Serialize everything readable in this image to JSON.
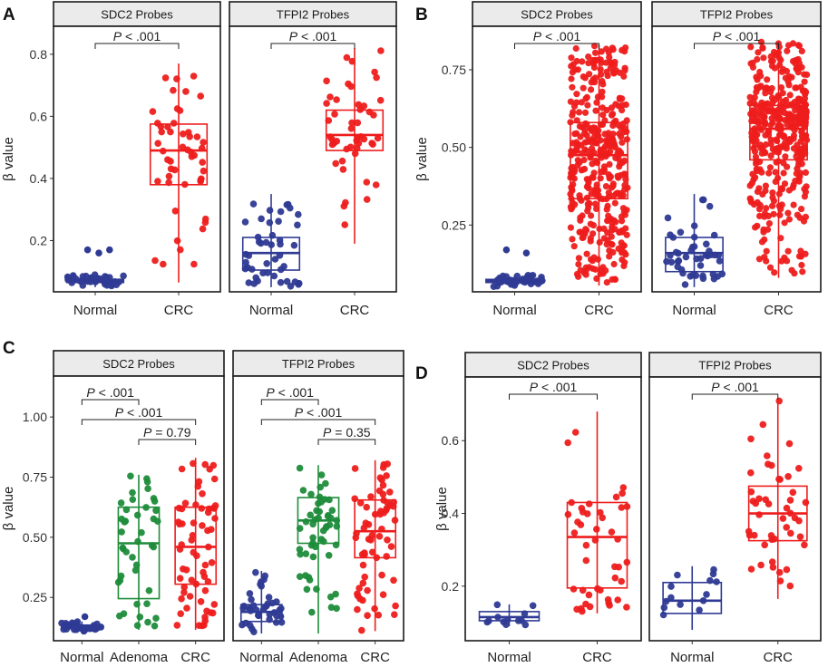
{
  "figure": {
    "colors": {
      "normal": "#2e3a93",
      "crc": "#ee1c1c",
      "adenoma": "#1e8c3a",
      "strip": "#ebebeb",
      "border": "#1a1a1a"
    }
  },
  "chart_data": [
    {
      "panel": "A",
      "type": "box",
      "ylabel": "β value",
      "yticks": [
        0.2,
        0.4,
        0.6,
        0.8
      ],
      "ylim": [
        0.035,
        0.89
      ],
      "yfmt": 1,
      "facets": [
        {
          "title": "SDC2 Probes",
          "groups": [
            {
              "name": "Normal",
              "color": "normal",
              "n": 40,
              "box": {
                "min": 0.05,
                "q1": 0.065,
                "median": 0.07,
                "q3": 0.075,
                "max": 0.09
              },
              "outliers": [
                0.16,
                0.17,
                0.17
              ]
            },
            {
              "name": "CRC",
              "color": "crc",
              "n": 50,
              "box": {
                "min": 0.065,
                "q1": 0.38,
                "median": 0.49,
                "q3": 0.575,
                "max": 0.77
              },
              "outliers": []
            }
          ],
          "comparisons": [
            {
              "g1": 0,
              "g2": 1,
              "label_prefix": "P",
              "label_suffix": " < .001",
              "level": 0
            }
          ]
        },
        {
          "title": "TFPI2 Probes",
          "groups": [
            {
              "name": "Normal",
              "color": "normal",
              "n": 45,
              "box": {
                "min": 0.05,
                "q1": 0.105,
                "median": 0.16,
                "q3": 0.21,
                "max": 0.35
              },
              "outliers": []
            },
            {
              "name": "CRC",
              "color": "crc",
              "n": 48,
              "box": {
                "min": 0.19,
                "q1": 0.49,
                "median": 0.54,
                "q3": 0.62,
                "max": 0.82
              },
              "outliers": []
            }
          ],
          "comparisons": [
            {
              "g1": 0,
              "g2": 1,
              "label_prefix": "P",
              "label_suffix": " < .001",
              "level": 0
            }
          ]
        }
      ]
    },
    {
      "panel": "B",
      "type": "box",
      "ylabel": "β value",
      "yticks": [
        0.25,
        0.5,
        0.75
      ],
      "ylim": [
        0.035,
        0.89
      ],
      "yfmt": 2,
      "facets": [
        {
          "title": "SDC2 Probes",
          "groups": [
            {
              "name": "Normal",
              "color": "normal",
              "n": 40,
              "box": {
                "min": 0.05,
                "q1": 0.065,
                "median": 0.07,
                "q3": 0.075,
                "max": 0.09
              },
              "outliers": [
                0.16,
                0.17
              ]
            },
            {
              "name": "CRC",
              "color": "crc",
              "n": 390,
              "box": {
                "min": 0.055,
                "q1": 0.335,
                "median": 0.475,
                "q3": 0.58,
                "max": 0.83
              },
              "outliers": []
            }
          ],
          "comparisons": [
            {
              "g1": 0,
              "g2": 1,
              "label_prefix": "P",
              "label_suffix": " < .001",
              "level": 0
            }
          ]
        },
        {
          "title": "TFPI2 Probes",
          "groups": [
            {
              "name": "Normal",
              "color": "normal",
              "n": 45,
              "box": {
                "min": 0.05,
                "q1": 0.1,
                "median": 0.16,
                "q3": 0.21,
                "max": 0.35
              },
              "outliers": []
            },
            {
              "name": "CRC",
              "color": "crc",
              "n": 390,
              "box": {
                "min": 0.08,
                "q1": 0.46,
                "median": 0.56,
                "q3": 0.635,
                "max": 0.84
              },
              "outliers": []
            }
          ],
          "comparisons": [
            {
              "g1": 0,
              "g2": 1,
              "label_prefix": "P",
              "label_suffix": " < .001",
              "level": 0
            }
          ]
        }
      ]
    },
    {
      "panel": "C",
      "type": "box",
      "ylabel": "β value",
      "yticks": [
        0.25,
        0.5,
        0.75,
        1.0
      ],
      "ylim": [
        0.07,
        1.17
      ],
      "yfmt": 2,
      "facets": [
        {
          "title": "SDC2 Probes",
          "groups": [
            {
              "name": "Normal",
              "color": "normal",
              "n": 30,
              "box": {
                "min": 0.115,
                "q1": 0.12,
                "median": 0.125,
                "q3": 0.135,
                "max": 0.15
              },
              "outliers": [
                0.11,
                0.17
              ]
            },
            {
              "name": "Adenoma",
              "color": "adenoma",
              "n": 42,
              "box": {
                "min": 0.115,
                "q1": 0.245,
                "median": 0.475,
                "q3": 0.625,
                "max": 0.76
              },
              "outliers": []
            },
            {
              "name": "CRC",
              "color": "crc",
              "n": 62,
              "box": {
                "min": 0.115,
                "q1": 0.305,
                "median": 0.46,
                "q3": 0.625,
                "max": 0.83
              },
              "outliers": []
            }
          ],
          "comparisons": [
            {
              "g1": 0,
              "g2": 1,
              "label_prefix": "P",
              "label_suffix": " < .001",
              "level": 0
            },
            {
              "g1": 0,
              "g2": 2,
              "label_prefix": "P",
              "label_suffix": " < .001",
              "level": 1
            },
            {
              "g1": 1,
              "g2": 2,
              "label_prefix": "P",
              "label_suffix": " = 0.79",
              "level": 2
            }
          ]
        },
        {
          "title": "TFPI2 Probes",
          "groups": [
            {
              "name": "Normal",
              "color": "normal",
              "n": 38,
              "box": {
                "min": 0.1,
                "q1": 0.15,
                "median": 0.19,
                "q3": 0.22,
                "max": 0.36
              },
              "outliers": []
            },
            {
              "name": "Adenoma",
              "color": "adenoma",
              "n": 52,
              "box": {
                "min": 0.1,
                "q1": 0.475,
                "median": 0.57,
                "q3": 0.665,
                "max": 0.8
              },
              "outliers": []
            },
            {
              "name": "CRC",
              "color": "crc",
              "n": 64,
              "box": {
                "min": 0.11,
                "q1": 0.415,
                "median": 0.525,
                "q3": 0.655,
                "max": 0.82
              },
              "outliers": []
            }
          ],
          "comparisons": [
            {
              "g1": 0,
              "g2": 1,
              "label_prefix": "P",
              "label_suffix": " < .001",
              "level": 0
            },
            {
              "g1": 0,
              "g2": 2,
              "label_prefix": "P",
              "label_suffix": " < .001",
              "level": 1
            },
            {
              "g1": 1,
              "g2": 2,
              "label_prefix": "P",
              "label_suffix": " = 0.35",
              "level": 2
            }
          ]
        }
      ]
    },
    {
      "panel": "D",
      "type": "box",
      "ylabel": "β value",
      "yticks": [
        0.2,
        0.4,
        0.6
      ],
      "ylim": [
        0.05,
        0.775
      ],
      "yfmt": 1,
      "facets": [
        {
          "title": "SDC2 Probes",
          "groups": [
            {
              "name": "Normal",
              "color": "normal",
              "n": 12,
              "box": {
                "min": 0.09,
                "q1": 0.105,
                "median": 0.115,
                "q3": 0.13,
                "max": 0.15
              },
              "outliers": []
            },
            {
              "name": "CRC",
              "color": "crc",
              "n": 44,
              "box": {
                "min": 0.125,
                "q1": 0.195,
                "median": 0.335,
                "q3": 0.43,
                "max": 0.68
              },
              "outliers": []
            }
          ],
          "comparisons": [
            {
              "g1": 0,
              "g2": 1,
              "label_prefix": "P",
              "label_suffix": " < .001",
              "level": 0
            }
          ]
        },
        {
          "title": "TFPI2 Probes",
          "groups": [
            {
              "name": "Normal",
              "color": "normal",
              "n": 14,
              "box": {
                "min": 0.08,
                "q1": 0.125,
                "median": 0.16,
                "q3": 0.21,
                "max": 0.255
              },
              "outliers": []
            },
            {
              "name": "CRC",
              "color": "crc",
              "n": 46,
              "box": {
                "min": 0.165,
                "q1": 0.325,
                "median": 0.4,
                "q3": 0.475,
                "max": 0.71
              },
              "outliers": []
            }
          ],
          "comparisons": [
            {
              "g1": 0,
              "g2": 1,
              "label_prefix": "P",
              "label_suffix": " < .001",
              "level": 0
            }
          ]
        }
      ]
    }
  ]
}
